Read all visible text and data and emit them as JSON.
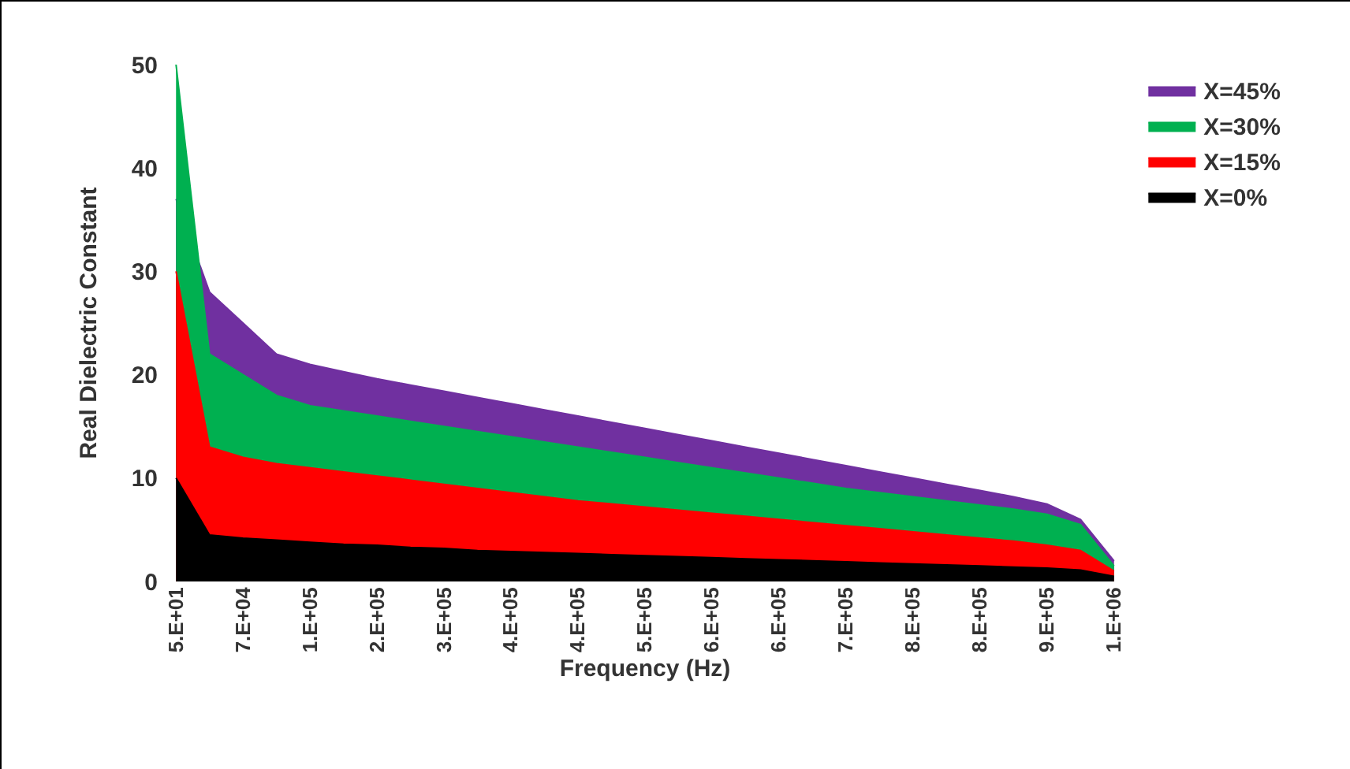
{
  "chart_data": {
    "type": "area",
    "xlabel": "Frequency (Hz)",
    "ylabel": "Real Dielectric Constant",
    "categories": [
      "5.E+01",
      null,
      "7.E+04",
      null,
      "1.E+05",
      null,
      "2.E+05",
      null,
      "3.E+05",
      null,
      "4.E+05",
      null,
      "4.E+05",
      null,
      "5.E+05",
      null,
      "6.E+05",
      null,
      "6.E+05",
      null,
      "7.E+05",
      null,
      "8.E+05",
      null,
      "8.E+05",
      null,
      "9.E+05",
      null,
      "1.E+06"
    ],
    "series": [
      {
        "name": "X=45%",
        "color": "#7030a0",
        "values": [
          37,
          28,
          25,
          22,
          21,
          20.3,
          19.6,
          19,
          18.4,
          17.8,
          17.2,
          16.6,
          16,
          15.4,
          14.8,
          14.2,
          13.6,
          13,
          12.4,
          11.8,
          11.2,
          10.6,
          10,
          9.4,
          8.8,
          8.2,
          7.5,
          6,
          2
        ]
      },
      {
        "name": "X=30%",
        "color": "#00b050",
        "values": [
          50,
          22,
          20,
          18,
          17,
          16.5,
          16,
          15.5,
          15,
          14.5,
          14,
          13.5,
          13,
          12.5,
          12,
          11.5,
          11,
          10.5,
          10,
          9.5,
          9,
          8.6,
          8.2,
          7.8,
          7.4,
          7,
          6.5,
          5.5,
          1.5
        ]
      },
      {
        "name": "X=15%",
        "color": "#ff0000",
        "values": [
          30,
          13,
          12,
          11.4,
          11,
          10.6,
          10.2,
          9.8,
          9.4,
          9,
          8.6,
          8.2,
          7.8,
          7.5,
          7.2,
          6.9,
          6.6,
          6.3,
          6,
          5.7,
          5.4,
          5.1,
          4.8,
          4.5,
          4.2,
          3.9,
          3.5,
          3,
          1
        ]
      },
      {
        "name": "X=0%",
        "color": "#000000",
        "values": [
          10,
          4.5,
          4.2,
          4,
          3.8,
          3.6,
          3.5,
          3.3,
          3.2,
          3,
          2.9,
          2.8,
          2.7,
          2.6,
          2.5,
          2.4,
          2.3,
          2.2,
          2.1,
          2,
          1.9,
          1.8,
          1.7,
          1.6,
          1.5,
          1.4,
          1.3,
          1.1,
          0.5
        ]
      }
    ],
    "ylim": [
      0,
      50
    ],
    "yticks": [
      0,
      10,
      20,
      30,
      40,
      50
    ],
    "grid": false,
    "legend": "right"
  }
}
